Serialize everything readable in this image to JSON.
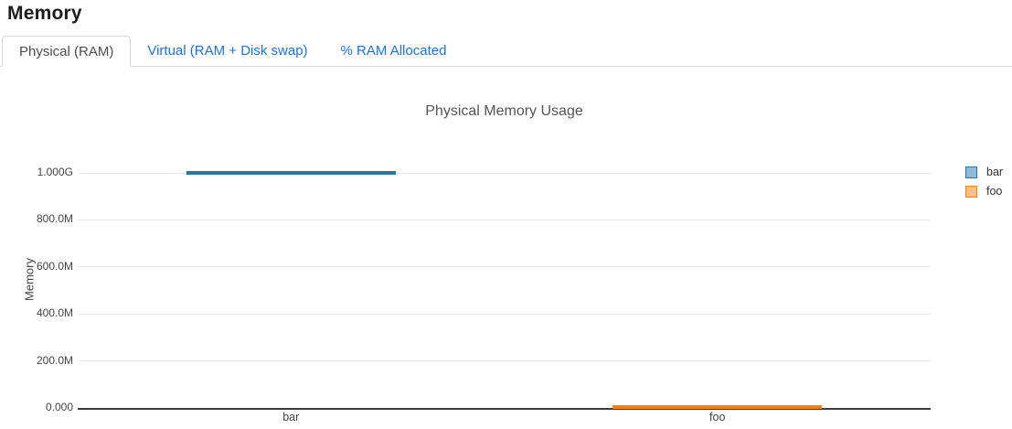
{
  "page": {
    "title": "Memory"
  },
  "tabs": [
    {
      "label": "Physical (RAM)",
      "active": true
    },
    {
      "label": "Virtual (RAM + Disk swap)",
      "active": false
    },
    {
      "label": "% RAM Allocated",
      "active": false
    }
  ],
  "chart_data": {
    "type": "bar",
    "title": "Physical Memory Usage",
    "xlabel": "",
    "ylabel": "Memory",
    "categories": [
      "bar",
      "foo"
    ],
    "series": [
      {
        "name": "bar",
        "color": "#1f77b4",
        "values": [
          1000000000,
          null
        ]
      },
      {
        "name": "foo",
        "color": "#ff7f0e",
        "values": [
          null,
          0
        ]
      }
    ],
    "yticks": [
      {
        "label": "1.000G",
        "value": 1000000000
      },
      {
        "label": "800.0M",
        "value": 800000000
      },
      {
        "label": "600.0M",
        "value": 600000000
      },
      {
        "label": "400.0M",
        "value": 400000000
      },
      {
        "label": "200.0M",
        "value": 200000000
      },
      {
        "label": "0.000",
        "value": 0
      }
    ],
    "ylim": [
      0,
      1100000000
    ],
    "grid": true,
    "legend_position": "right"
  },
  "colors": {
    "link_blue": "#1a73e8",
    "bar_blue": "#1f77b4",
    "bar_orange": "#ff7f0e"
  }
}
